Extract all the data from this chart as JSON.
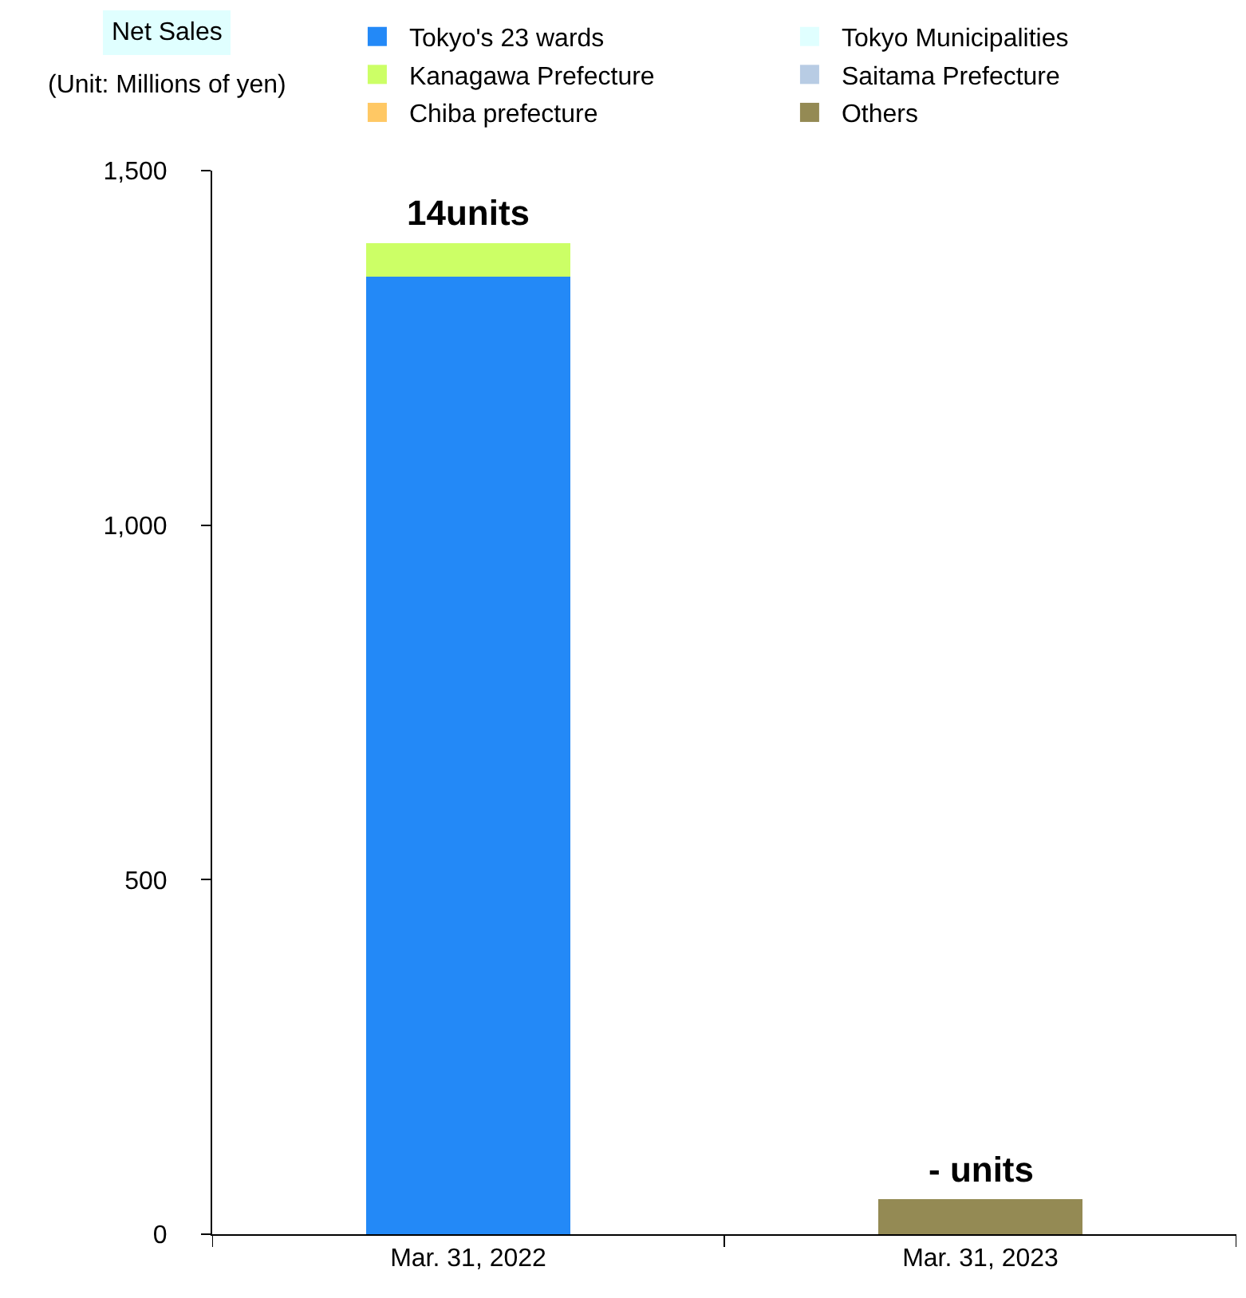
{
  "chart_data": {
    "type": "bar",
    "title": "Net Sales",
    "stacked": true,
    "categories": [
      "Mar. 31, 2022",
      "Mar. 31, 2023"
    ],
    "series": [
      {
        "name": "Tokyo's 23 wards",
        "color": "#2389f7",
        "values": [
          1350,
          0
        ]
      },
      {
        "name": "Tokyo Municipalities",
        "color": "#e0ffff",
        "values": [
          0,
          0
        ]
      },
      {
        "name": "Kanagawa Prefecture",
        "color": "#ccff66",
        "values": [
          48,
          0
        ]
      },
      {
        "name": "Saitama Prefecture",
        "color": "#b8cce4",
        "values": [
          0,
          0
        ]
      },
      {
        "name": "Chiba prefecture",
        "color": "#ffc864",
        "values": [
          0,
          0
        ]
      },
      {
        "name": "Others",
        "color": "#948a54",
        "values": [
          0,
          50
        ]
      }
    ],
    "ylim": [
      0,
      1500
    ],
    "yticks": [
      0,
      {
        "value": 500,
        "label": "500"
      },
      {
        "value": 1000,
        "label": "1,000"
      },
      {
        "value": 1500,
        "label": "1,500"
      }
    ],
    "grid": false,
    "legend": "top",
    "annotations": [
      "(Unit: Millions of yen)",
      {
        "text": "14units",
        "x": "Mar. 31, 2022",
        "y": 1398
      },
      {
        "text": "- units",
        "x": "Mar. 31, 2023",
        "y": 50
      }
    ]
  }
}
